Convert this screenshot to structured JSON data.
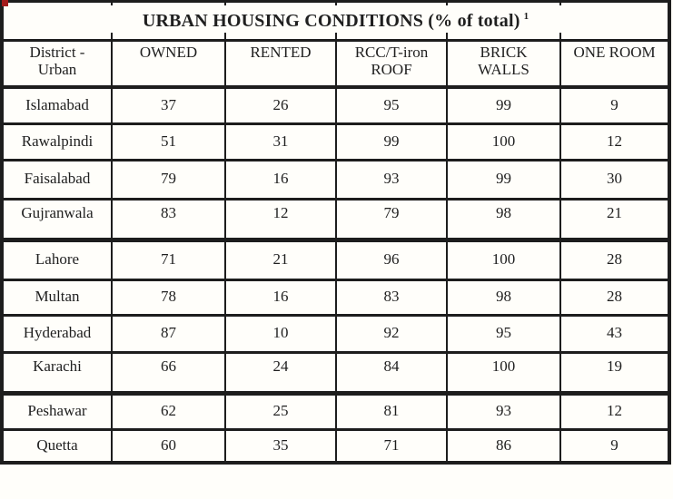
{
  "title": {
    "text": "URBAN HOUSING CONDITIONS (% of total)",
    "superscript": "1"
  },
  "columns": [
    {
      "label": "District - Urban",
      "lines": [
        "District -",
        "Urban"
      ]
    },
    {
      "label": "OWNED",
      "lines": [
        "OWNED"
      ]
    },
    {
      "label": "RENTED",
      "lines": [
        "RENTED"
      ]
    },
    {
      "label": "RCC/T-iron ROOF",
      "lines": [
        "RCC/T-iron",
        "ROOF"
      ]
    },
    {
      "label": "BRICK WALLS",
      "lines": [
        "BRICK",
        "WALLS"
      ]
    },
    {
      "label": "ONE ROOM",
      "lines": [
        "ONE ROOM"
      ]
    }
  ],
  "rows": [
    {
      "district": "Islamabad",
      "values": [
        37,
        26,
        95,
        99,
        9
      ]
    },
    {
      "district": "Rawalpindi",
      "values": [
        51,
        31,
        99,
        100,
        12
      ]
    },
    {
      "district": "Faisalabad",
      "values": [
        79,
        16,
        93,
        99,
        30
      ]
    },
    {
      "district": "Gujranwala",
      "values": [
        83,
        12,
        79,
        98,
        21
      ]
    },
    {
      "district": "Lahore",
      "values": [
        71,
        21,
        96,
        100,
        28
      ]
    },
    {
      "district": "Multan",
      "values": [
        78,
        16,
        83,
        98,
        28
      ]
    },
    {
      "district": "Hyderabad",
      "values": [
        87,
        10,
        92,
        95,
        43
      ]
    },
    {
      "district": "Karachi",
      "values": [
        66,
        24,
        84,
        100,
        19
      ]
    },
    {
      "district": "Peshawar",
      "values": [
        62,
        25,
        81,
        93,
        12
      ]
    },
    {
      "district": "Quetta",
      "values": [
        60,
        35,
        71,
        86,
        9
      ]
    }
  ],
  "colors": {
    "border": "#1d1d1d",
    "text": "#1f1f1f",
    "background": "#fffefa",
    "corner_mark": "#a31b1b"
  }
}
